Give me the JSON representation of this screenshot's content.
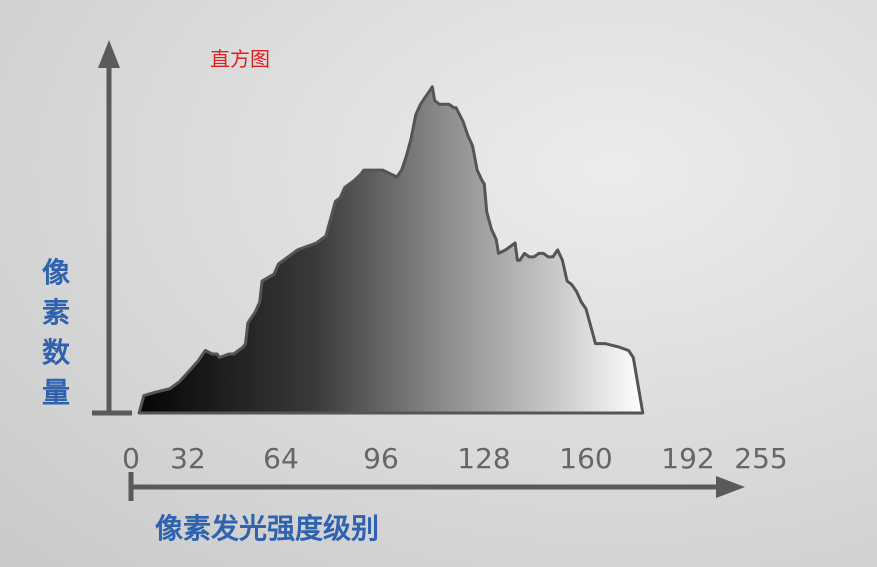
{
  "chart_data": {
    "type": "area",
    "title": "直方图",
    "ylabel": "像素数量",
    "xlabel": "像素发光强度级别",
    "xlim": [
      0,
      255
    ],
    "x_ticks": [
      0,
      32,
      64,
      96,
      128,
      160,
      192,
      255
    ],
    "ylim": [
      0,
      100
    ],
    "series": [
      {
        "x": [
          3,
          5,
          10,
          16,
          20,
          24,
          28,
          31,
          34,
          36,
          37,
          41,
          42,
          43,
          45,
          47,
          48,
          49,
          50,
          51,
          52,
          54,
          55,
          60,
          62,
          66,
          70,
          74,
          78,
          82,
          86,
          88,
          90,
          94,
          97,
          98,
          100,
          106,
          112,
          114,
          116,
          118,
          120,
          122,
          123,
          124,
          126,
          127,
          128,
          130,
          134,
          136,
          137,
          140,
          142,
          144,
          146,
          148,
          149,
          150,
          152,
          154,
          155,
          158,
          162,
          163,
          164,
          166,
          168,
          170,
          172,
          174,
          176,
          178,
          180,
          182,
          184,
          186,
          188,
          190,
          192,
          196,
          200,
          206,
          210,
          212,
          216
        ],
        "y": [
          0,
          5,
          6,
          7,
          9,
          12,
          15,
          18,
          17,
          17,
          16,
          17,
          17,
          17,
          18,
          19,
          20,
          26,
          27,
          28,
          29,
          32,
          38,
          40,
          43,
          45,
          47,
          48,
          49,
          51,
          61,
          62,
          65,
          67,
          69,
          70,
          70,
          70,
          68,
          70,
          74,
          79,
          86,
          89,
          90,
          91,
          93,
          94,
          90,
          89,
          89,
          88,
          88,
          84,
          80,
          77,
          70,
          67,
          66,
          58,
          53,
          50,
          46,
          47,
          49,
          44,
          44,
          46,
          45,
          45,
          46,
          46,
          45,
          45,
          47,
          44,
          38,
          37,
          35,
          32,
          30,
          20,
          20,
          19,
          18,
          16,
          0
        ]
      }
    ]
  }
}
